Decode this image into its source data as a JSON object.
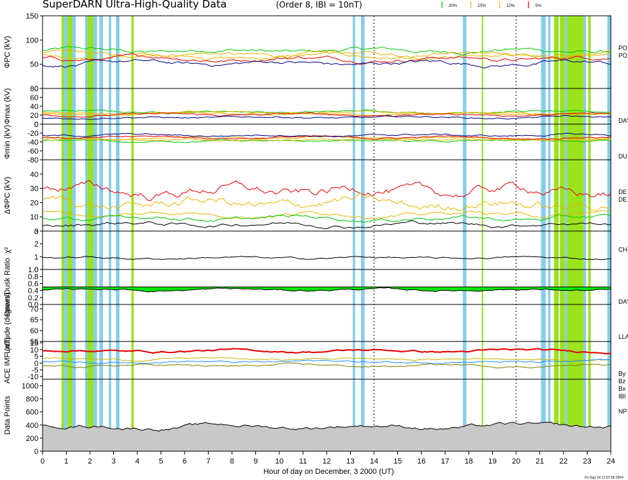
{
  "title": "SuperDARN Ultra-High-Quality Data",
  "subtitle": "(Order 8, IBI = 10nT)",
  "legend": [
    {
      "label": "20%",
      "color": "#00c800"
    },
    {
      "label": "15%",
      "color": "#e6b400"
    },
    {
      "label": "10%",
      "color": "#e6b400"
    },
    {
      "label": "5%",
      "color": "#e60000"
    }
  ],
  "stamp": "Fri Sep 24 11:57:28 2004",
  "chart_data": {
    "type": "line",
    "xlabel": "Hour of day on December, 3 2000 (UT)",
    "xlim": [
      0,
      24
    ],
    "xticks": [
      "0",
      "1",
      "2",
      "3",
      "4",
      "5",
      "6",
      "7",
      "8",
      "9",
      "10",
      "11",
      "12",
      "13",
      "14",
      "15",
      "16",
      "17",
      "18",
      "19",
      "20",
      "21",
      "22",
      "23",
      "24"
    ],
    "dashed_hours": [
      14,
      20
    ],
    "blue_bands": [
      [
        0.9,
        1.05
      ],
      [
        1.25,
        1.4
      ],
      [
        1.8,
        1.95
      ],
      [
        2.15,
        2.3
      ],
      [
        2.4,
        2.55
      ],
      [
        2.8,
        2.9
      ],
      [
        3.1,
        3.25
      ],
      [
        13.1,
        13.2
      ],
      [
        13.45,
        13.6
      ],
      [
        17.75,
        17.9
      ],
      [
        21.05,
        21.25
      ],
      [
        21.35,
        21.45
      ],
      [
        22.05,
        22.15
      ],
      [
        22.85,
        22.95
      ],
      [
        23.85,
        24.0
      ]
    ],
    "green_bands": [
      [
        0.8,
        0.9
      ],
      [
        1.05,
        1.25
      ],
      [
        1.9,
        2.15
      ],
      [
        3.75,
        3.85
      ],
      [
        18.55,
        18.6
      ],
      [
        21.6,
        21.8
      ],
      [
        21.85,
        22.05
      ],
      [
        22.15,
        22.55
      ],
      [
        22.55,
        22.85
      ],
      [
        23.05,
        23.15
      ]
    ],
    "panels": [
      {
        "ylabel": "ΦPC (kV)",
        "yticks": [
          "150",
          "100",
          "50",
          "0"
        ],
        "ylim": [
          0,
          150
        ],
        "side": [
          "PO",
          "PO"
        ],
        "series": [
          {
            "name": "20%",
            "mean": 78
          },
          {
            "name": "15%",
            "mean": 70
          },
          {
            "name": "10%",
            "mean": 66
          },
          {
            "name": "5%",
            "mean": 62
          },
          {
            "name": "ΦPC",
            "mean": 52
          }
        ]
      },
      {
        "ylabel": "Φmax (kV)",
        "yticks": [
          "80",
          "60",
          "40",
          "20",
          "0"
        ],
        "ylim": [
          0,
          80
        ],
        "side": [
          "DAY"
        ],
        "series": [
          {
            "name": "20%",
            "mean": 28
          },
          {
            "name": "15%",
            "mean": 25
          },
          {
            "name": "10%",
            "mean": 23
          },
          {
            "name": "5%",
            "mean": 21
          },
          {
            "name": "Φmax",
            "mean": 15
          }
        ]
      },
      {
        "ylabel": "Φmin (kV)",
        "yticks": [
          "0",
          "-20",
          "-40",
          "-60",
          "-80"
        ],
        "ylim": [
          -80,
          0
        ],
        "side": [
          "DU"
        ],
        "series": [
          {
            "name": "20%",
            "mean": -38
          },
          {
            "name": "15%",
            "mean": -36
          },
          {
            "name": "10%",
            "mean": -32
          },
          {
            "name": "5%",
            "mean": -30
          },
          {
            "name": "Φmin",
            "mean": -25
          }
        ]
      },
      {
        "ylabel": "ΔΦPC (kV)",
        "yticks": [
          "40",
          "30",
          "20",
          "10",
          "0"
        ],
        "ylim": [
          0,
          50
        ],
        "side": [
          "DE",
          "DE"
        ],
        "series": [
          {
            "name": "5%",
            "mean": 28
          },
          {
            "name": "10%",
            "mean": 19
          },
          {
            "name": "15%",
            "mean": 12
          },
          {
            "name": "20%",
            "mean": 9
          },
          {
            "name": "ΔΦPC",
            "mean": 5
          }
        ]
      },
      {
        "ylabel": "χ²",
        "yticks": [
          "3",
          "2",
          "1",
          "0"
        ],
        "ylim": [
          0,
          3
        ],
        "side": [
          "CH"
        ],
        "series": [
          {
            "name": "χ²",
            "mean": 0.9
          }
        ]
      },
      {
        "ylabel": "Dawn/Dusk Ratio",
        "yticks": [
          "1.0",
          "0.8",
          "0.6",
          "0.4",
          "0.2",
          "0.0"
        ],
        "ylim": [
          0,
          1
        ],
        "side": [
          "DAY"
        ],
        "series": [
          {
            "name": "Ratio",
            "mean": 0.42
          }
        ]
      },
      {
        "ylabel": "Latitude (degrees)",
        "yticks": [
          "70",
          "65",
          "60",
          "55"
        ],
        "ylim": [
          55,
          72
        ],
        "side": [
          "LLA"
        ],
        "series": [
          {
            "name": "Latitude",
            "mean": 64
          }
        ]
      },
      {
        "ylabel": "ACE IMF (nT)",
        "yticks": [
          "15",
          "10",
          "5",
          "0",
          "-5",
          "-10"
        ],
        "ylim": [
          -12,
          16
        ],
        "side": [
          "By",
          "Bz",
          "Bx",
          "IBI"
        ],
        "series": [
          {
            "name": "IBI",
            "mean": 9
          },
          {
            "name": "By",
            "mean": 3
          },
          {
            "name": "Bz",
            "mean": 1
          },
          {
            "name": "Bx",
            "mean": -2
          }
        ]
      },
      {
        "ylabel": "Data Points",
        "yticks": [
          "1000",
          "800",
          "600",
          "400",
          "200",
          "0"
        ],
        "ylim": [
          0,
          1100
        ],
        "side": [
          "NP"
        ],
        "series": [
          {
            "name": "Data Points",
            "mean": 380
          }
        ]
      }
    ]
  }
}
